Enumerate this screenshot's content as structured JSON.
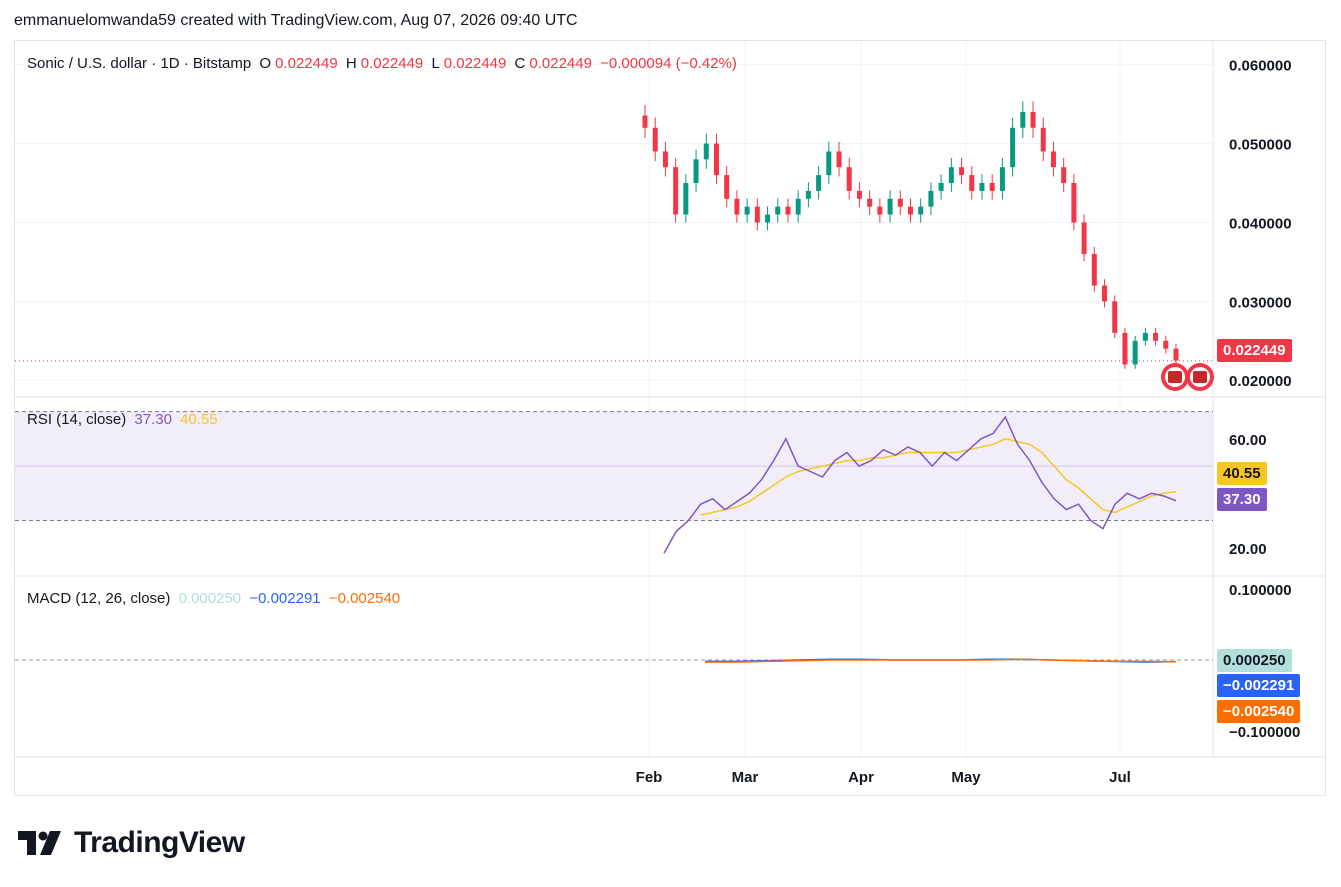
{
  "header": {
    "attribution": "emmanuelomwanda59 created with TradingView.com, Aug 07, 2026 09:40 UTC"
  },
  "legend": {
    "symbol": "Sonic / U.S. dollar · 1D · Bitstamp",
    "o_label": "O",
    "o_value": "0.022449",
    "h_label": "H",
    "h_value": "0.022449",
    "l_label": "L",
    "l_value": "0.022449",
    "c_label": "C",
    "c_value": "0.022449",
    "change": "−0.000094 (−0.42%)"
  },
  "rsi_legend": {
    "name": "RSI (14, close)",
    "value": "37.30",
    "ma": "40.55"
  },
  "macd_legend": {
    "name": "MACD (12, 26, close)",
    "hist": "0.000250",
    "macd": "−0.002291",
    "signal": "−0.002540"
  },
  "price_axis": [
    "0.060000",
    "0.050000",
    "0.040000",
    "0.030000",
    "0.020000"
  ],
  "rsi_axis": [
    "60.00",
    "20.00"
  ],
  "macd_axis": [
    "0.100000",
    "−0.100000"
  ],
  "time_axis": [
    "Feb",
    "Mar",
    "Apr",
    "May",
    "Jul"
  ],
  "tags": {
    "last_price": "0.022449",
    "rsi_ma": "40.55",
    "rsi": "37.30",
    "macd_hist": "0.000250",
    "macd": "−0.002291",
    "macd_signal": "−0.002540"
  },
  "brand": {
    "name": "TradingView"
  },
  "colors": {
    "up": "#089981",
    "down": "#f23645",
    "rsi": "#7e57c2",
    "rsi_ma": "#f7c525",
    "macd": "#2962ff",
    "signal": "#ff6d00",
    "hist": "#b2dfdb"
  },
  "chart_data": [
    {
      "type": "candlestick",
      "title": "Sonic / U.S. dollar · 1D · Bitstamp",
      "ylim": [
        0.018,
        0.063
      ],
      "last_price": 0.022449,
      "x_labels": [
        "Feb",
        "Mar",
        "Apr",
        "May",
        "Jul"
      ],
      "series": [
        {
          "name": "close",
          "values": [
            0.052,
            0.049,
            0.047,
            0.041,
            0.045,
            0.048,
            0.05,
            0.046,
            0.043,
            0.041,
            0.042,
            0.04,
            0.041,
            0.042,
            0.041,
            0.043,
            0.044,
            0.046,
            0.049,
            0.047,
            0.044,
            0.043,
            0.042,
            0.041,
            0.043,
            0.042,
            0.041,
            0.042,
            0.044,
            0.045,
            0.047,
            0.046,
            0.044,
            0.045,
            0.044,
            0.047,
            0.052,
            0.054,
            0.052,
            0.049,
            0.047,
            0.045,
            0.04,
            0.036,
            0.032,
            0.03,
            0.026,
            0.022,
            0.025,
            0.026,
            0.025,
            0.024,
            0.0225
          ]
        }
      ]
    },
    {
      "type": "line",
      "title": "RSI (14, close)",
      "ylim": [
        10,
        75
      ],
      "series": [
        {
          "name": "RSI",
          "values": [
            18,
            26,
            30,
            36,
            38,
            34,
            37,
            40,
            45,
            52,
            60,
            50,
            48,
            46,
            52,
            55,
            50,
            52,
            56,
            54,
            57,
            55,
            50,
            55,
            52,
            56,
            60,
            62,
            68,
            58,
            52,
            44,
            38,
            34,
            36,
            30,
            27,
            36,
            40,
            38,
            40,
            39,
            37.3
          ]
        },
        {
          "name": "RSI-based MA",
          "values": [
            null,
            null,
            null,
            32,
            33,
            34,
            35,
            37,
            40,
            43,
            46,
            48,
            49,
            50,
            51,
            52,
            52,
            53,
            53,
            54,
            55,
            55,
            55,
            55,
            55,
            56,
            57,
            58,
            60,
            59,
            58,
            55,
            50,
            45,
            42,
            38,
            34,
            33,
            35,
            37,
            39,
            40,
            40.55
          ]
        }
      ]
    },
    {
      "type": "line",
      "title": "MACD (12, 26, close)",
      "ylim": [
        -0.1,
        0.1
      ],
      "series": [
        {
          "name": "MACD",
          "values": [
            -0.002,
            -0.002,
            -0.001,
            0.0,
            0.001,
            0.001,
            0.0,
            0.0,
            0.0,
            0.001,
            0.001,
            0.0,
            -0.001,
            -0.002,
            -0.003,
            -0.002291
          ]
        },
        {
          "name": "Signal",
          "values": [
            -0.003,
            -0.003,
            -0.002,
            -0.001,
            0.0,
            0.0,
            0.0,
            0.0,
            0.0,
            0.0,
            0.001,
            0.0,
            -0.001,
            -0.002,
            -0.002,
            -0.00254
          ]
        },
        {
          "name": "Histogram",
          "values": [
            0.0,
            0.0,
            0.0,
            0.0,
            0.0,
            0.0,
            0.0,
            0.0,
            0.0,
            0.0,
            0.0,
            0.0,
            0.0,
            0.0,
            0.0,
            0.00025
          ]
        }
      ]
    }
  ]
}
